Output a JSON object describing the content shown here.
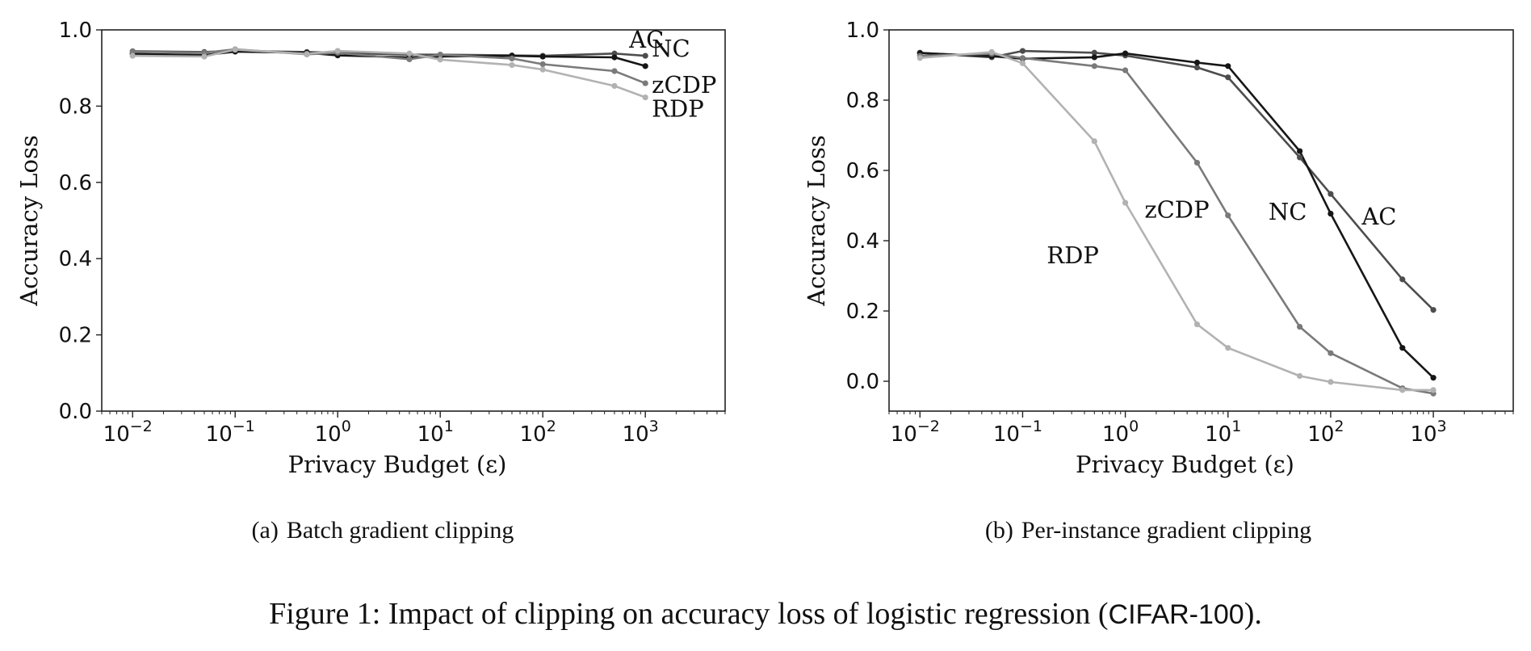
{
  "colors": {
    "AC": "#4d4d4d",
    "NC": "#161616",
    "zCDP": "#7a7a7a",
    "RDP": "#b2b2b2"
  },
  "chart_data": [
    {
      "type": "line",
      "caption_tag": "(a)",
      "caption_text": "Batch gradient clipping",
      "xlabel": "Privacy Budget (ε)",
      "ylabel": "Accuracy Loss",
      "xscale": "log",
      "xlim": [
        0.005,
        6000
      ],
      "ylim": [
        0.0,
        1.0
      ],
      "xticks": [
        {
          "value": 0.01,
          "base": "10",
          "exp": "−2"
        },
        {
          "value": 0.1,
          "base": "10",
          "exp": "−1"
        },
        {
          "value": 1,
          "base": "10",
          "exp": "0"
        },
        {
          "value": 10,
          "base": "10",
          "exp": "1"
        },
        {
          "value": 100,
          "base": "10",
          "exp": "2"
        },
        {
          "value": 1000,
          "base": "10",
          "exp": "3"
        }
      ],
      "yticks": [
        "0.0",
        "0.2",
        "0.4",
        "0.6",
        "0.8",
        "1.0"
      ],
      "grid": false,
      "x": [
        0.01,
        0.05,
        0.1,
        0.5,
        1,
        5,
        10,
        50,
        100,
        500,
        1000
      ],
      "series": [
        {
          "name": "AC",
          "values": [
            0.944,
            0.942,
            0.945,
            0.942,
            0.94,
            0.935,
            0.935,
            0.933,
            0.932,
            0.938,
            0.932
          ]
        },
        {
          "name": "NC",
          "values": [
            0.937,
            0.934,
            0.943,
            0.94,
            0.933,
            0.928,
            0.93,
            0.932,
            0.93,
            0.928,
            0.905
          ]
        },
        {
          "name": "zCDP",
          "values": [
            0.943,
            0.94,
            0.949,
            0.936,
            0.94,
            0.923,
            0.935,
            0.925,
            0.91,
            0.892,
            0.86
          ]
        },
        {
          "name": "RDP",
          "values": [
            0.932,
            0.93,
            0.948,
            0.937,
            0.945,
            0.938,
            0.922,
            0.908,
            0.896,
            0.853,
            0.823
          ]
        }
      ],
      "labels": [
        {
          "series": "AC",
          "text": "AC"
        },
        {
          "series": "NC",
          "text": "NC"
        },
        {
          "series": "zCDP",
          "text": "zCDP"
        },
        {
          "series": "RDP",
          "text": "RDP"
        }
      ]
    },
    {
      "type": "line",
      "caption_tag": "(b)",
      "caption_text": "Per-instance gradient clipping",
      "xlabel": "Privacy Budget (ε)",
      "ylabel": "Accuracy Loss",
      "xscale": "log",
      "xlim": [
        0.005,
        6000
      ],
      "ylim": [
        -0.085,
        1.0
      ],
      "xticks": [
        {
          "value": 0.01,
          "base": "10",
          "exp": "−2"
        },
        {
          "value": 0.1,
          "base": "10",
          "exp": "−1"
        },
        {
          "value": 1,
          "base": "10",
          "exp": "0"
        },
        {
          "value": 10,
          "base": "10",
          "exp": "1"
        },
        {
          "value": 100,
          "base": "10",
          "exp": "2"
        },
        {
          "value": 1000,
          "base": "10",
          "exp": "3"
        }
      ],
      "yticks": [
        "0.0",
        "0.2",
        "0.4",
        "0.6",
        "0.8",
        "1.0"
      ],
      "grid": false,
      "x": [
        0.01,
        0.05,
        0.1,
        0.5,
        1,
        5,
        10,
        50,
        100,
        500,
        1000
      ],
      "series": [
        {
          "name": "AC",
          "values": [
            0.935,
            0.922,
            0.94,
            0.935,
            0.927,
            0.893,
            0.865,
            0.637,
            0.533,
            0.29,
            0.203
          ]
        },
        {
          "name": "NC",
          "values": [
            0.934,
            0.925,
            0.918,
            0.922,
            0.933,
            0.907,
            0.897,
            0.655,
            0.477,
            0.095,
            0.01
          ]
        },
        {
          "name": "zCDP",
          "values": [
            0.926,
            0.932,
            0.92,
            0.897,
            0.885,
            0.622,
            0.472,
            0.155,
            0.08,
            -0.02,
            -0.035
          ]
        },
        {
          "name": "RDP",
          "values": [
            0.92,
            0.937,
            0.905,
            0.683,
            0.508,
            0.162,
            0.095,
            0.015,
            -0.002,
            -0.025,
            -0.025
          ]
        }
      ],
      "labels": [
        {
          "series": "RDP",
          "text": "RDP"
        },
        {
          "series": "zCDP",
          "text": "zCDP"
        },
        {
          "series": "NC",
          "text": "NC"
        },
        {
          "series": "AC",
          "text": "AC"
        }
      ]
    }
  ],
  "figure_caption": {
    "prefix": "Figure 1: Impact of clipping on accuracy loss of logistic regression (",
    "dataset": "CIFAR-100",
    "suffix": ")."
  }
}
